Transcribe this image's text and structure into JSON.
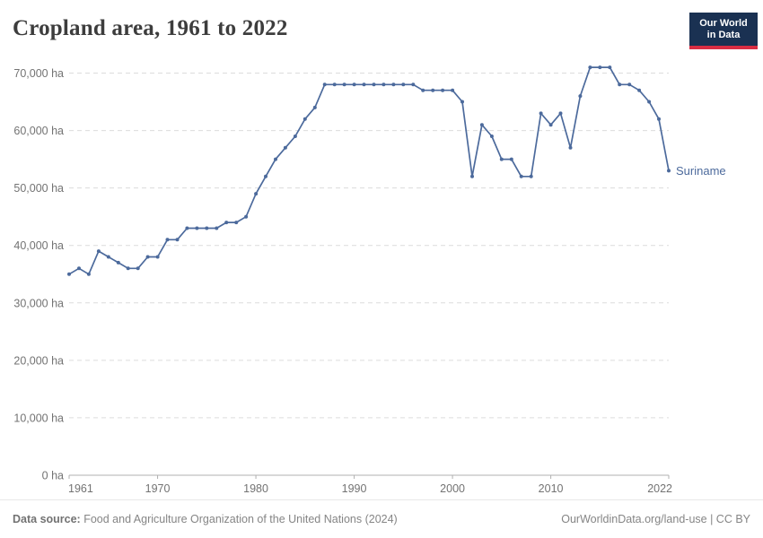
{
  "header": {
    "title": "Cropland area, 1961 to 2022"
  },
  "logo": {
    "line1": "Our World",
    "line2": "in Data",
    "bg_color": "#1A3152",
    "accent_color": "#D92D43"
  },
  "chart_data": {
    "type": "line",
    "title": "Cropland area, 1961 to 2022",
    "entity": "Suriname",
    "unit": "ha",
    "xlim": [
      1961,
      2022
    ],
    "ylim": [
      0,
      70000
    ],
    "xticks": [
      1961,
      1970,
      1980,
      1990,
      2000,
      2010,
      2022
    ],
    "yticks": [
      0,
      10000,
      20000,
      30000,
      40000,
      50000,
      60000,
      70000
    ],
    "ytick_suffix": " ha",
    "grid": "dashed-horizontal",
    "legend_position": "end-of-line-label",
    "line_color": "#4C6A9C",
    "grid_color": "#dcdcdc",
    "axis_color": "#b0b0b0",
    "tick_label_color": "#737373",
    "x": [
      1961,
      1962,
      1963,
      1964,
      1965,
      1966,
      1967,
      1968,
      1969,
      1970,
      1971,
      1972,
      1973,
      1974,
      1975,
      1976,
      1977,
      1978,
      1979,
      1980,
      1981,
      1982,
      1983,
      1984,
      1985,
      1986,
      1987,
      1988,
      1989,
      1990,
      1991,
      1992,
      1993,
      1994,
      1995,
      1996,
      1997,
      1998,
      1999,
      2000,
      2001,
      2002,
      2003,
      2004,
      2005,
      2006,
      2007,
      2008,
      2009,
      2010,
      2011,
      2012,
      2013,
      2014,
      2015,
      2016,
      2017,
      2018,
      2019,
      2020,
      2021,
      2022
    ],
    "series": [
      {
        "name": "Suriname",
        "values": [
          35000,
          36000,
          35000,
          39000,
          38000,
          37000,
          36000,
          36000,
          38000,
          38000,
          41000,
          41000,
          43000,
          43000,
          43000,
          43000,
          44000,
          44000,
          45000,
          49000,
          52000,
          55000,
          57000,
          59000,
          62000,
          64000,
          68000,
          68000,
          68000,
          68000,
          68000,
          68000,
          68000,
          68000,
          68000,
          68000,
          67000,
          67000,
          67000,
          67000,
          65000,
          52000,
          61000,
          59000,
          55000,
          55000,
          52000,
          52000,
          63000,
          61000,
          63000,
          57000,
          66000,
          71000,
          71000,
          71000,
          68000,
          68000,
          67000,
          65000,
          62000,
          53000
        ]
      }
    ]
  },
  "footer": {
    "source_label": "Data source:",
    "source_text": " Food and Agriculture Organization of the United Nations (2024)",
    "right_text": "OurWorldinData.org/land-use | CC BY"
  }
}
